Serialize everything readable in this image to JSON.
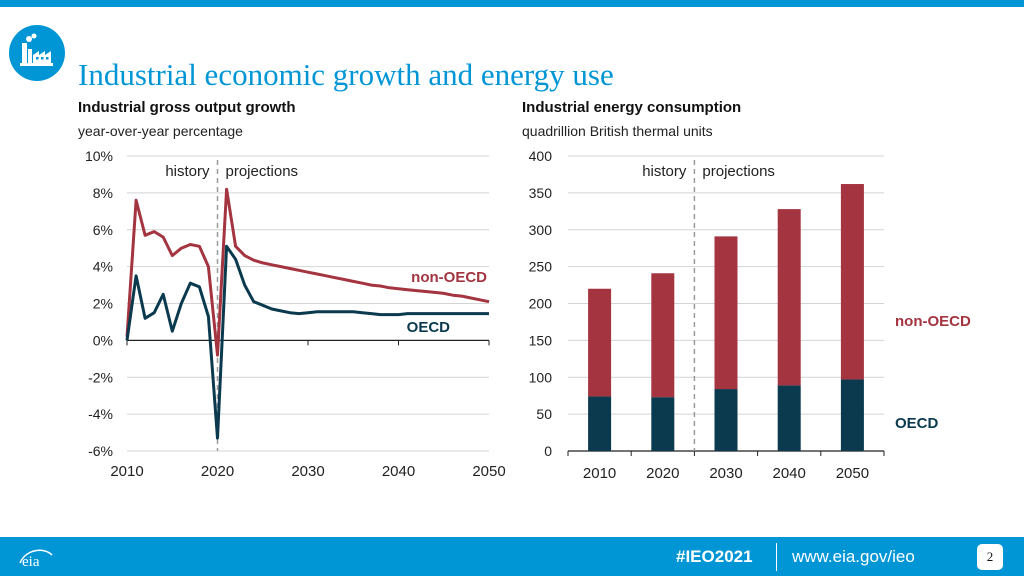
{
  "title": "Industrial economic growth and energy use",
  "colors": {
    "brand": "#0096d6",
    "non_oecd": "#a33440",
    "oecd": "#0b3a4f"
  },
  "footer": {
    "hashtag": "#IEO2021",
    "url": "www.eia.gov/ieo",
    "page": "2",
    "logo_text": "eia"
  },
  "chart_data": [
    {
      "type": "line",
      "title": "Industrial gross output growth",
      "subtitle": "year-over-year percentage",
      "ylim": [
        -6,
        10
      ],
      "xlim": [
        2010,
        2050
      ],
      "yticks": [
        "10%",
        "8%",
        "6%",
        "4%",
        "2%",
        "0%",
        "-2%",
        "-4%",
        "-6%"
      ],
      "xticks": [
        "2010",
        "2020",
        "2030",
        "2040",
        "2050"
      ],
      "history_label": "history",
      "projections_label": "projections",
      "divider_x": 2020,
      "series": [
        {
          "name": "non-OECD",
          "x": [
            2010,
            2011,
            2012,
            2013,
            2014,
            2015,
            2016,
            2017,
            2018,
            2019,
            2020,
            2021,
            2022,
            2023,
            2024,
            2025,
            2026,
            2027,
            2028,
            2029,
            2030,
            2031,
            2032,
            2033,
            2034,
            2035,
            2036,
            2037,
            2038,
            2039,
            2040,
            2041,
            2042,
            2043,
            2044,
            2045,
            2046,
            2047,
            2048,
            2049,
            2050
          ],
          "values": [
            0.2,
            7.6,
            5.7,
            5.9,
            5.6,
            4.6,
            5.0,
            5.2,
            5.1,
            4.0,
            -0.8,
            8.2,
            5.1,
            4.6,
            4.35,
            4.2,
            4.1,
            4.0,
            3.9,
            3.8,
            3.7,
            3.6,
            3.5,
            3.4,
            3.3,
            3.2,
            3.1,
            3.0,
            2.95,
            2.85,
            2.8,
            2.75,
            2.7,
            2.65,
            2.6,
            2.55,
            2.45,
            2.4,
            2.3,
            2.2,
            2.1
          ]
        },
        {
          "name": "OECD",
          "x": [
            2010,
            2011,
            2012,
            2013,
            2014,
            2015,
            2016,
            2017,
            2018,
            2019,
            2020,
            2021,
            2022,
            2023,
            2024,
            2025,
            2026,
            2027,
            2028,
            2029,
            2030,
            2031,
            2032,
            2033,
            2034,
            2035,
            2036,
            2037,
            2038,
            2039,
            2040,
            2041,
            2042,
            2043,
            2044,
            2045,
            2046,
            2047,
            2048,
            2049,
            2050
          ],
          "values": [
            0.0,
            3.5,
            1.2,
            1.5,
            2.5,
            0.5,
            2.0,
            3.1,
            2.9,
            1.3,
            -5.3,
            5.1,
            4.4,
            3.0,
            2.1,
            1.9,
            1.7,
            1.6,
            1.5,
            1.45,
            1.5,
            1.55,
            1.55,
            1.55,
            1.55,
            1.55,
            1.5,
            1.45,
            1.4,
            1.4,
            1.4,
            1.45,
            1.45,
            1.45,
            1.45,
            1.45,
            1.45,
            1.45,
            1.45,
            1.45,
            1.45
          ]
        }
      ]
    },
    {
      "type": "bar",
      "stacked": true,
      "title": "Industrial energy consumption",
      "subtitle": "quadrillion British thermal units",
      "ylim": [
        0,
        400
      ],
      "yticks": [
        "400",
        "350",
        "300",
        "250",
        "200",
        "150",
        "100",
        "50",
        "0"
      ],
      "categories": [
        "2010",
        "2020",
        "2030",
        "2040",
        "2050"
      ],
      "history_label": "history",
      "projections_label": "projections",
      "series": [
        {
          "name": "OECD",
          "values": [
            74,
            73,
            84,
            89,
            97
          ]
        },
        {
          "name": "non-OECD",
          "values": [
            146,
            168,
            207,
            239,
            265
          ]
        }
      ]
    }
  ]
}
